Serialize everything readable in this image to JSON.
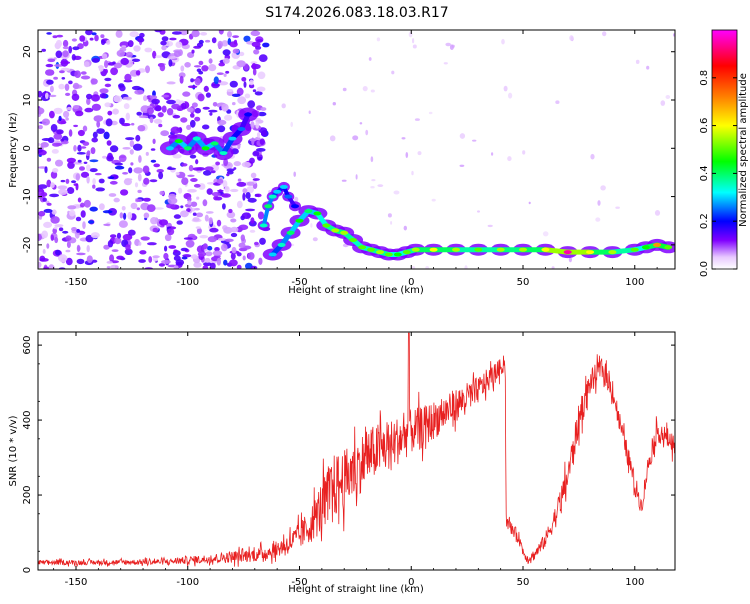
{
  "title": "S174.2026.083.18.03.R17",
  "chart_data": [
    {
      "type": "heatmap",
      "name": "spectrogram",
      "xlabel": "Height of straight line (km)",
      "ylabel": "Frequency (Hz)",
      "xlim": [
        -167,
        118
      ],
      "ylim": [
        -25,
        24.5
      ],
      "xticks": [
        -150,
        -100,
        -50,
        0,
        50,
        100
      ],
      "yticks": [
        -20,
        -10,
        0,
        10,
        20
      ],
      "tick_labels_x": [
        "-150",
        "-100",
        "-50",
        "0",
        "50",
        "100"
      ],
      "tick_labels_y": [
        "-20",
        "-10",
        "0",
        "10",
        "20"
      ],
      "colorbar": {
        "label": "Normalized spectral amplitude",
        "range": [
          0.0,
          1.0
        ],
        "ticks": [
          0.0,
          0.2,
          0.4,
          0.6,
          0.8
        ],
        "tick_labels": [
          "0.0",
          "0.2",
          "0.4",
          "0.6",
          "0.8"
        ],
        "colormap": [
          "#ffffff",
          "#8000ff",
          "#0000ff",
          "#00ffff",
          "#00ff00",
          "#ffff00",
          "#ff8000",
          "#ff0000",
          "#ff00ff"
        ]
      },
      "trace": {
        "x": [
          -62,
          -58,
          -54,
          -50,
          -46,
          -42,
          -38,
          -34,
          -30,
          -26,
          -22,
          -18,
          -14,
          -10,
          -6,
          -2,
          2,
          10,
          20,
          30,
          40,
          50,
          60,
          70,
          80,
          90,
          100,
          105,
          110,
          115
        ],
        "y": [
          -22,
          -20,
          -17.5,
          -15,
          -13,
          -13.5,
          -16,
          -17,
          -17.5,
          -19,
          -20.5,
          -21,
          -21.5,
          -22,
          -22,
          -21.5,
          -21,
          -21,
          -21,
          -21,
          -21,
          -21,
          -21,
          -21.5,
          -21.5,
          -21.5,
          -21,
          -20.5,
          -20,
          -20.5
        ],
        "amplitude": [
          0.3,
          0.35,
          0.4,
          0.45,
          0.4,
          0.45,
          0.5,
          0.55,
          0.55,
          0.5,
          0.5,
          0.5,
          0.55,
          0.5,
          0.45,
          0.5,
          0.55,
          0.6,
          0.55,
          0.5,
          0.55,
          0.55,
          0.6,
          0.95,
          0.6,
          0.55,
          0.5,
          0.45,
          0.7,
          0.5
        ]
      },
      "branch": {
        "x": [
          -66,
          -64,
          -62,
          -60,
          -57,
          -55,
          -52
        ],
        "y": [
          -16,
          -12,
          -10,
          -9,
          -8,
          -10,
          -12
        ],
        "amplitude": [
          0.35,
          0.4,
          0.35,
          0.3,
          0.3,
          0.25,
          0.2
        ]
      },
      "cluster": {
        "x": [
          -108,
          -104,
          -100,
          -96,
          -92,
          -88,
          -84,
          -80,
          -76,
          -73
        ],
        "y": [
          0,
          1.5,
          0,
          2,
          0,
          1,
          -1,
          2,
          4,
          7
        ],
        "amplitude": [
          0.3,
          0.45,
          0.4,
          0.35,
          0.45,
          0.4,
          0.35,
          0.3,
          0.25,
          0.2
        ]
      },
      "noise_region_x": [
        -167,
        -65
      ],
      "noise_level": 0.12
    },
    {
      "type": "line",
      "name": "snr",
      "xlabel": "Height of straight line (km)",
      "ylabel": "SNR (10 * v/v)",
      "xlim": [
        -167,
        118
      ],
      "ylim": [
        0,
        635
      ],
      "xticks": [
        -150,
        -100,
        -50,
        0,
        50,
        100
      ],
      "yticks": [
        0,
        200,
        400,
        600
      ],
      "tick_labels_x": [
        "-150",
        "-100",
        "-50",
        "0",
        "50",
        "100"
      ],
      "tick_labels_y": [
        "0",
        "200",
        "400",
        "600"
      ],
      "color": "#e82020",
      "envelope": {
        "x": [
          -167,
          -140,
          -110,
          -90,
          -80,
          -70,
          -62,
          -55,
          -50,
          -45,
          -40,
          -35,
          -30,
          -25,
          -20,
          -15,
          -10,
          -5,
          0,
          5,
          10,
          15,
          20,
          25,
          30,
          35,
          40,
          42,
          42.5,
          45,
          48,
          50,
          52,
          55,
          60,
          65,
          70,
          75,
          80,
          85,
          90,
          95,
          100,
          103,
          106,
          110,
          115,
          118
        ],
        "y": [
          20,
          20,
          22,
          30,
          35,
          40,
          50,
          70,
          90,
          120,
          170,
          220,
          240,
          270,
          300,
          320,
          330,
          350,
          370,
          380,
          400,
          420,
          440,
          460,
          480,
          510,
          540,
          560,
          130,
          110,
          90,
          50,
          30,
          40,
          80,
          150,
          250,
          400,
          500,
          540,
          480,
          350,
          230,
          170,
          280,
          370,
          350,
          330
        ],
        "noise": [
          8,
          8,
          10,
          15,
          20,
          22,
          25,
          35,
          45,
          60,
          90,
          110,
          100,
          100,
          95,
          90,
          85,
          80,
          75,
          70,
          65,
          60,
          55,
          50,
          45,
          40,
          30,
          25,
          20,
          20,
          20,
          18,
          15,
          18,
          25,
          40,
          50,
          55,
          40,
          35,
          35,
          35,
          35,
          30,
          35,
          35,
          35,
          35
        ]
      },
      "spike": {
        "x": -1,
        "y": 632
      }
    }
  ]
}
